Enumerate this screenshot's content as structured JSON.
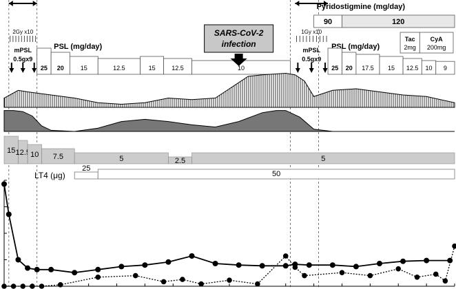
{
  "chart_data": {
    "type": "line",
    "title": "",
    "colors": {
      "line": "#000000",
      "bar_fill": "#e6e6e6",
      "bar_stroke": "#555555",
      "band_gray": "#cccccc",
      "wave_dark": "#777777",
      "box_gray": "#d6d6d6"
    },
    "x_dates": [
      0,
      1,
      3,
      5,
      7,
      10,
      15,
      20,
      25,
      30,
      35,
      40,
      45,
      50,
      55,
      60,
      62,
      65,
      70,
      75,
      80,
      85,
      90,
      95
    ],
    "radiation": [
      {
        "label": "2Gy x10",
        "start": 1,
        "end": 7
      },
      {
        "label": "1Gy x10",
        "start": 62,
        "end": 69
      }
    ],
    "mpsl": [
      {
        "label": "mPSL",
        "dose": "0.5gx9",
        "start": 1,
        "end": 7
      },
      {
        "label": "mPSL",
        "dose": "0.5gx9",
        "start": 62,
        "end": 69
      }
    ],
    "psl": {
      "label_1": "PSL (mg/day)",
      "label_2": "PSL (mg/day)",
      "segments": [
        {
          "dose": "25",
          "start": 7,
          "end": 10,
          "level": 25
        },
        {
          "dose": "20",
          "start": 10,
          "end": 14,
          "level": 20
        },
        {
          "dose": "15",
          "start": 14,
          "end": 20,
          "level": 15
        },
        {
          "dose": "12.5",
          "start": 20,
          "end": 29,
          "level": 12.5
        },
        {
          "dose": "15",
          "start": 29,
          "end": 34,
          "level": 15
        },
        {
          "dose": "12.5",
          "start": 34,
          "end": 40,
          "level": 12.5
        },
        {
          "dose": "10",
          "start": 40,
          "end": 61,
          "level": 10
        },
        {
          "dose": "25",
          "start": 69,
          "end": 72,
          "level": 25
        },
        {
          "dose": "20",
          "start": 72,
          "end": 75,
          "level": 20
        },
        {
          "dose": "17.5",
          "start": 75,
          "end": 80,
          "level": 17.5
        },
        {
          "dose": "15",
          "start": 80,
          "end": 85,
          "level": 15
        },
        {
          "dose": "12.5",
          "start": 85,
          "end": 89,
          "level": 12.5
        },
        {
          "dose": "10",
          "start": 89,
          "end": 92,
          "level": 10
        },
        {
          "dose": "9",
          "start": 92,
          "end": 96,
          "level": 9
        }
      ]
    },
    "sars": {
      "label_1": "SARS-CoV-2",
      "label_2": "infection",
      "day": 50
    },
    "pyridostigmine": {
      "label": "Pyridostigmine (mg/day)",
      "segments": [
        {
          "dose": "90",
          "start": 66,
          "end": 72
        },
        {
          "dose": "120",
          "start": 72,
          "end": 96
        }
      ]
    },
    "tac": {
      "name": "Tac",
      "dose": "2mg"
    },
    "cya": {
      "name": "CyA",
      "dose": "200mg"
    },
    "band": {
      "segments": [
        {
          "dose": "15",
          "start": 0,
          "end": 3,
          "level": 15
        },
        {
          "dose": "12.5",
          "start": 3,
          "end": 5,
          "level": 12.5
        },
        {
          "dose": "10",
          "start": 5,
          "end": 8,
          "level": 10
        },
        {
          "dose": "7.5",
          "start": 8,
          "end": 15,
          "level": 7.5
        },
        {
          "dose": "5",
          "start": 15,
          "end": 35,
          "level": 5
        },
        {
          "dose": "2.5",
          "start": 35,
          "end": 40,
          "level": 2.5
        },
        {
          "dose": "5",
          "start": 40,
          "end": 96,
          "level": 5
        }
      ]
    },
    "lt4": {
      "label": "LT4 (μg)",
      "segments": [
        {
          "dose": "25",
          "start": 15,
          "end": 20
        },
        {
          "dose": "50",
          "start": 20,
          "end": 96
        }
      ]
    },
    "solid_series": {
      "name": "",
      "x": [
        0,
        1,
        3,
        5,
        7,
        10,
        15,
        20,
        25,
        30,
        35,
        40,
        45,
        50,
        55,
        60,
        62,
        65,
        70,
        75,
        80,
        85,
        90,
        95
      ],
      "y": [
        135,
        95,
        35,
        24,
        22,
        22,
        18,
        22,
        26,
        28,
        32,
        40,
        30,
        28,
        27,
        27,
        29,
        28,
        28,
        26,
        30,
        33,
        34,
        34
      ]
    },
    "dotted_series": {
      "name": "",
      "x": [
        0,
        2,
        4,
        6,
        8,
        12,
        20,
        28,
        34,
        38,
        42,
        48,
        54,
        60,
        62,
        64,
        72,
        78,
        84,
        88,
        92,
        94,
        96
      ],
      "y": [
        0,
        0,
        0,
        0,
        0,
        2,
        12,
        14,
        6,
        9,
        3,
        8,
        3,
        40,
        25,
        14,
        18,
        14,
        23,
        12,
        16,
        7,
        53
      ]
    },
    "upper_wave": {
      "x": [
        0,
        3,
        5,
        10,
        15,
        20,
        25,
        30,
        35,
        40,
        45,
        48,
        52,
        55,
        60,
        62,
        64,
        66,
        70,
        75,
        80,
        85,
        90,
        96
      ],
      "y": [
        0.3,
        0.55,
        0.5,
        0.4,
        0.3,
        0.15,
        0.1,
        0.15,
        0.3,
        0.25,
        0.3,
        0.6,
        1.0,
        1.05,
        1.1,
        1.05,
        0.85,
        0.35,
        0.55,
        0.6,
        0.5,
        0.4,
        0.35,
        0.15
      ]
    },
    "lower_wave": {
      "x": [
        0,
        2,
        4,
        6,
        8,
        10,
        15,
        20,
        25,
        30,
        35,
        40,
        45,
        50,
        55,
        58,
        60,
        63,
        66,
        70,
        75,
        80,
        85,
        90,
        96
      ],
      "y": [
        0.95,
        0.95,
        0.9,
        0.7,
        0.25,
        0.05,
        0.0,
        0.15,
        0.45,
        0.55,
        0.45,
        0.3,
        0.2,
        0.45,
        0.85,
        0.95,
        0.95,
        0.65,
        0.1,
        0.0,
        0.0,
        0.0,
        0.0,
        0.0,
        0.0
      ]
    },
    "xlim": [
      0,
      96
    ],
    "ylim": [
      0,
      140
    ],
    "grid": false,
    "dashed_guides": [
      1,
      7,
      61,
      67
    ]
  }
}
